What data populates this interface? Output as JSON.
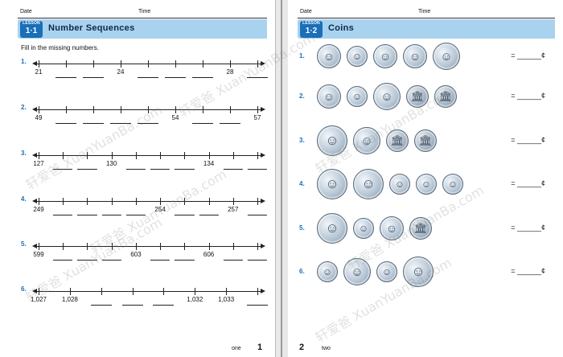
{
  "header": {
    "date_label": "Date",
    "time_label": "Time"
  },
  "left": {
    "lesson_word": "LESSON",
    "lesson_num": "1·1",
    "title": "Number Sequences",
    "instruction": "Fill in the missing numbers.",
    "problems": [
      {
        "num": "1.",
        "ticks": 9,
        "labels": [
          "21",
          "",
          "",
          "24",
          "",
          "",
          "",
          "28",
          ""
        ]
      },
      {
        "num": "2.",
        "ticks": 9,
        "labels": [
          "49",
          "",
          "",
          "",
          "",
          "54",
          "",
          "",
          "57"
        ]
      },
      {
        "num": "3.",
        "ticks": 10,
        "labels": [
          "127",
          "",
          "",
          "130",
          "",
          "",
          "",
          "134",
          "",
          ""
        ]
      },
      {
        "num": "4.",
        "ticks": 10,
        "labels": [
          "249",
          "",
          "",
          "",
          "",
          "254",
          "",
          "",
          "257",
          ""
        ]
      },
      {
        "num": "5.",
        "ticks": 10,
        "labels": [
          "599",
          "",
          "",
          "",
          "603",
          "",
          "",
          "606",
          "",
          ""
        ]
      },
      {
        "num": "6.",
        "ticks": 8,
        "labels": [
          "1,027",
          "1,028",
          "",
          "",
          "",
          "1,032",
          "1,033",
          ""
        ]
      }
    ],
    "page_word": "one",
    "page_num": "1"
  },
  "right": {
    "lesson_word": "LESSON",
    "lesson_num": "1·2",
    "title": "Coins",
    "rows": [
      {
        "num": "1.",
        "coins": [
          "nickel",
          "dime",
          "nickel",
          "nickel",
          "quarter"
        ]
      },
      {
        "num": "2.",
        "coins": [
          "nickel",
          "dime",
          "quarter",
          "penny",
          "penny"
        ]
      },
      {
        "num": "3.",
        "coins": [
          "half-dollar",
          "quarter",
          "penny",
          "penny"
        ]
      },
      {
        "num": "4.",
        "coins": [
          "half-dollar",
          "half-dollar",
          "dime",
          "dime",
          "dime"
        ]
      },
      {
        "num": "5.",
        "coins": [
          "half-dollar",
          "dime",
          "nickel",
          "penny"
        ]
      },
      {
        "num": "6.",
        "coins": [
          "dime",
          "quarter",
          "dime",
          "half-dollar"
        ]
      }
    ],
    "answer_text": "= ______¢",
    "page_num": "2",
    "page_word": "two"
  },
  "watermark": "轩爱爸 XuanYuanBa.com"
}
